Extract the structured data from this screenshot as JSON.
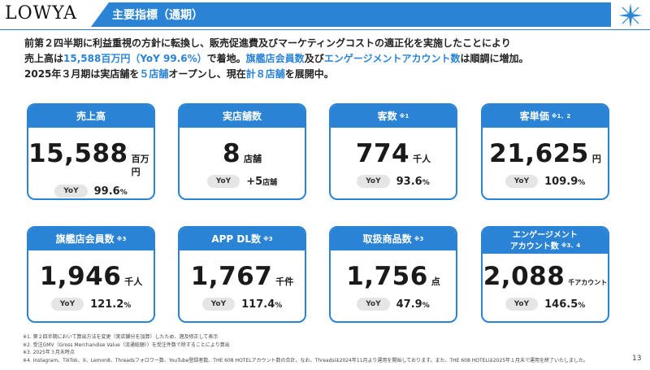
{
  "header": {
    "logo": "LOWYA",
    "title": "主要指標（通期）"
  },
  "intro": {
    "line1": "前第２四半期に利益重視の方針に転換し、販売促進費及びマーケティングコストの適正化を実施したことにより",
    "line2_a": "売上高は",
    "line2_b": "15,588百万円（YoY 99.6%）",
    "line2_c": "で着地。",
    "line2_d": "旗艦店会員数",
    "line2_e": "及び",
    "line2_f": "エンゲージメントアカウント数",
    "line2_g": "は順調に増加。",
    "line3_a": "2025年３月期は実店舗を",
    "line3_b": "５店舗",
    "line3_c": "オープンし、現在",
    "line3_d": "計８店舗",
    "line3_e": "を展開中。"
  },
  "cards": [
    {
      "title": "売上高",
      "note": "",
      "value": "15,588",
      "unit": "百万円",
      "yoy_label": "YoY",
      "yoy_value": "99.6",
      "yoy_suffix": "%"
    },
    {
      "title": "実店舗数",
      "note": "",
      "value": "8",
      "unit": "店舗",
      "yoy_label": "YoY",
      "yoy_value": "+5",
      "yoy_suffix": "店舗"
    },
    {
      "title": "客数",
      "note": "※1",
      "value": "774",
      "unit": "千人",
      "yoy_label": "YoY",
      "yoy_value": "93.6",
      "yoy_suffix": "%"
    },
    {
      "title": "客単価",
      "note": "※1、2",
      "value": "21,625",
      "unit": "円",
      "yoy_label": "YoY",
      "yoy_value": "109.9",
      "yoy_suffix": "%"
    },
    {
      "title": "旗艦店会員数",
      "note": "※3",
      "value": "1,946",
      "unit": "千人",
      "yoy_label": "YoY",
      "yoy_value": "121.2",
      "yoy_suffix": "%"
    },
    {
      "title": "APP DL数",
      "note": "※3",
      "value": "1,767",
      "unit": "千件",
      "yoy_label": "YoY",
      "yoy_value": "117.4",
      "yoy_suffix": "%"
    },
    {
      "title": "取扱商品数",
      "note": "※3",
      "value": "1,756",
      "unit": "点",
      "yoy_label": "YoY",
      "yoy_value": "47.9",
      "yoy_suffix": "%"
    },
    {
      "title": "エンゲージメントアカウント数",
      "title_line1": "エンゲージメント",
      "title_line2": "アカウント数",
      "note": "※3、4",
      "value": "2,088",
      "unit": "千アカウント",
      "yoy_label": "YoY",
      "yoy_value": "146.5",
      "yoy_suffix": "%"
    }
  ],
  "footnotes": [
    "※1. 第２四半期において算出方法を変更（実店舗分を加算）したため、遡及修正して表示",
    "※2. 受注GMV（Gross Merchandise Value（流通総額））を受注件数で除することにより算出",
    "※3. 2025年３月末時点",
    "※4. Instagram、TikTok、X、Lemon8、Threadsフォロワー数、YouTube登録者数、THE 608 HOTELアカウント数の合計。なお、Threadsは2024年11月より運用を開始しております。また、THE 608 HOTELは2025年１月末で運用を終了いたしました。"
  ],
  "page_number": "13",
  "colors": {
    "accent": "#2b83d6",
    "pill": "#e5e5e5"
  }
}
